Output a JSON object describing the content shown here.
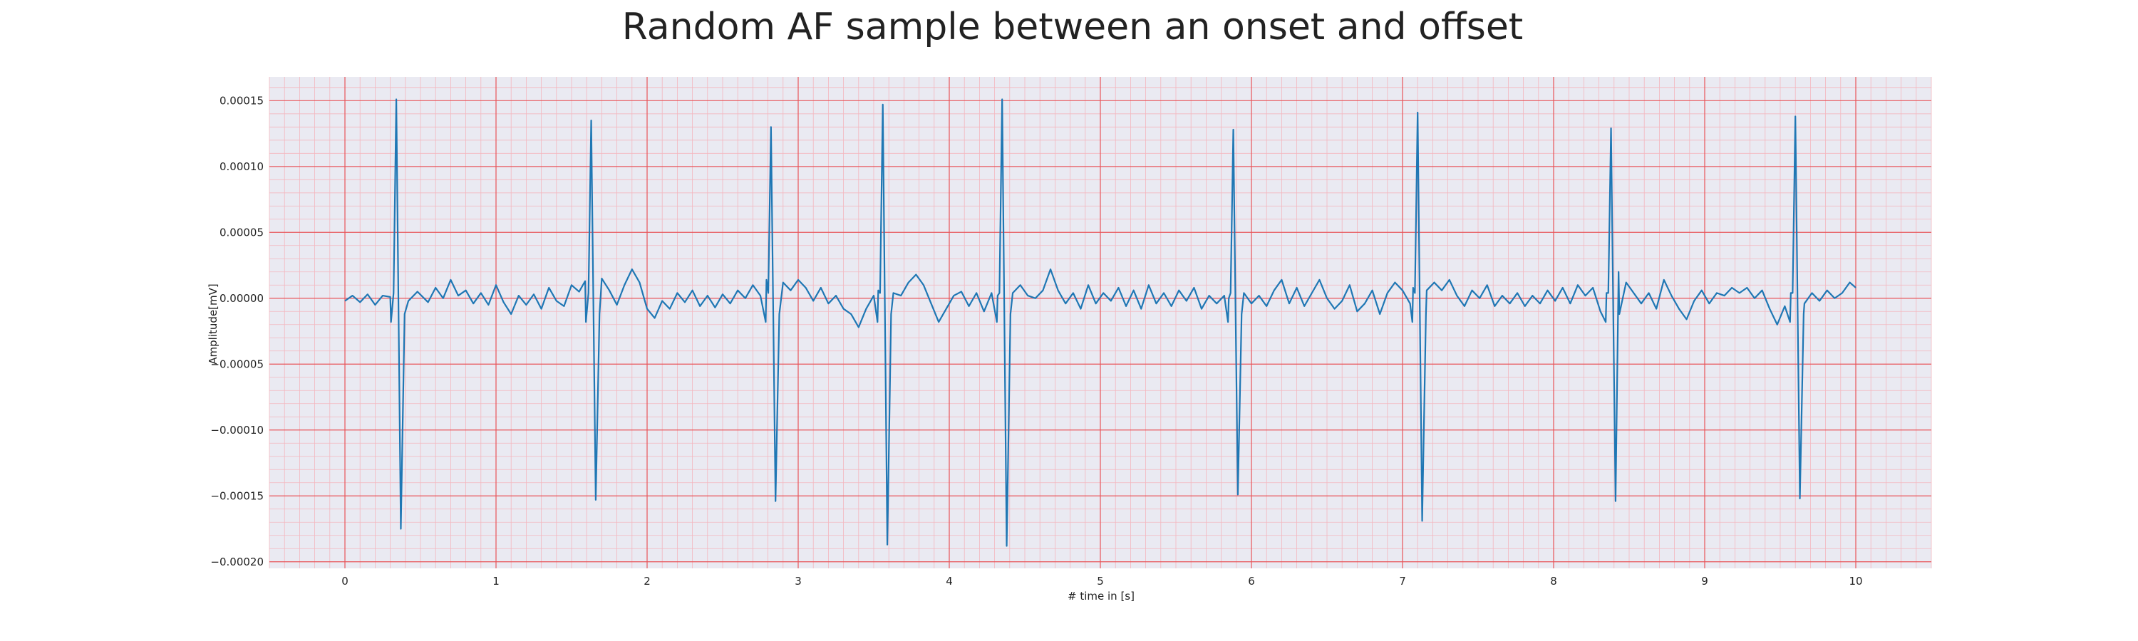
{
  "chart_data": {
    "type": "line",
    "title": "Random AF sample between an onset and offset",
    "xlabel": "# time in [s]",
    "ylabel": "Amplitude[mV]",
    "xlim": [
      -0.5,
      10.5
    ],
    "ylim": [
      -0.000205,
      0.000168
    ],
    "x_ticks": [
      0,
      1,
      2,
      3,
      4,
      5,
      6,
      7,
      8,
      9,
      10
    ],
    "x_tick_labels": [
      "0",
      "1",
      "2",
      "3",
      "4",
      "5",
      "6",
      "7",
      "8",
      "9",
      "10"
    ],
    "y_ticks": [
      -0.0002,
      -0.00015,
      -0.0001,
      -5e-05,
      0,
      5e-05,
      0.0001,
      0.00015
    ],
    "y_tick_labels": [
      "−0.00020",
      "−0.00015",
      "−0.00010",
      "−0.00005",
      "0.00000",
      "0.00005",
      "0.00010",
      "0.00015"
    ],
    "grid": true,
    "minor_grid": true,
    "legend": "none",
    "colors": {
      "background": "#eaeaf2",
      "major_grid": "#e8555a",
      "minor_grid": "#f4b6be",
      "line": "#1f77b4"
    },
    "series": [
      {
        "beats": [
          {
            "t": 0.34,
            "peak": 0.000151,
            "trough": -0.000175
          },
          {
            "t": 1.63,
            "peak": 0.000135,
            "trough": -0.000153
          },
          {
            "t": 2.82,
            "peak": 0.00013,
            "trough": -0.000154
          },
          {
            "t": 3.56,
            "peak": 0.000147,
            "trough": -0.000187
          },
          {
            "t": 4.35,
            "peak": 0.000151,
            "trough": -0.000188
          },
          {
            "t": 5.88,
            "peak": 0.000128,
            "trough": -0.000149
          },
          {
            "t": 7.1,
            "peak": 0.000141,
            "trough": -0.000169
          },
          {
            "t": 8.38,
            "peak": 0.000129,
            "trough": -0.000154
          },
          {
            "t": 9.6,
            "peak": 0.000138,
            "trough": -0.000152
          }
        ],
        "baseline": [
          [
            0.0,
            -2e-06
          ],
          [
            0.05,
            2e-06
          ],
          [
            0.1,
            -3e-06
          ],
          [
            0.15,
            3e-06
          ],
          [
            0.2,
            -5e-06
          ],
          [
            0.25,
            2e-06
          ],
          [
            0.3,
            1e-06
          ],
          [
            0.42,
            -2e-06
          ],
          [
            0.48,
            5e-06
          ],
          [
            0.55,
            -3e-06
          ],
          [
            0.6,
            8e-06
          ],
          [
            0.65,
            0
          ],
          [
            0.7,
            1.4e-05
          ],
          [
            0.75,
            2e-06
          ],
          [
            0.8,
            6e-06
          ],
          [
            0.85,
            -4e-06
          ],
          [
            0.9,
            4e-06
          ],
          [
            0.95,
            -5e-06
          ],
          [
            1.0,
            1e-05
          ],
          [
            1.05,
            -3e-06
          ],
          [
            1.1,
            -1.2e-05
          ],
          [
            1.15,
            2e-06
          ],
          [
            1.2,
            -5e-06
          ],
          [
            1.25,
            3e-06
          ],
          [
            1.3,
            -8e-06
          ],
          [
            1.35,
            8e-06
          ],
          [
            1.4,
            -2e-06
          ],
          [
            1.45,
            -6e-06
          ],
          [
            1.5,
            1e-05
          ],
          [
            1.55,
            5e-06
          ],
          [
            1.59,
            1.3e-05
          ],
          [
            1.7,
            1.5e-05
          ],
          [
            1.75,
            6e-06
          ],
          [
            1.8,
            -5e-06
          ],
          [
            1.85,
            1e-05
          ],
          [
            1.9,
            2.2e-05
          ],
          [
            1.95,
            1.2e-05
          ],
          [
            2.0,
            -8e-06
          ],
          [
            2.05,
            -1.5e-05
          ],
          [
            2.1,
            -2e-06
          ],
          [
            2.15,
            -8e-06
          ],
          [
            2.2,
            4e-06
          ],
          [
            2.25,
            -3e-06
          ],
          [
            2.3,
            6e-06
          ],
          [
            2.35,
            -6e-06
          ],
          [
            2.4,
            2e-06
          ],
          [
            2.45,
            -7e-06
          ],
          [
            2.5,
            3e-06
          ],
          [
            2.55,
            -4e-06
          ],
          [
            2.6,
            6e-06
          ],
          [
            2.65,
            0
          ],
          [
            2.7,
            1e-05
          ],
          [
            2.75,
            2e-06
          ],
          [
            2.79,
            1.4e-05
          ],
          [
            2.9,
            1.2e-05
          ],
          [
            2.95,
            6e-06
          ],
          [
            3.0,
            1.4e-05
          ],
          [
            3.05,
            8e-06
          ],
          [
            3.1,
            -2e-06
          ],
          [
            3.15,
            8e-06
          ],
          [
            3.2,
            -4e-06
          ],
          [
            3.25,
            2e-06
          ],
          [
            3.3,
            -8e-06
          ],
          [
            3.35,
            -1.2e-05
          ],
          [
            3.4,
            -2.2e-05
          ],
          [
            3.45,
            -8e-06
          ],
          [
            3.5,
            2e-06
          ],
          [
            3.53,
            6e-06
          ],
          [
            3.63,
            4e-06
          ],
          [
            3.68,
            2e-06
          ],
          [
            3.73,
            1.2e-05
          ],
          [
            3.78,
            1.8e-05
          ],
          [
            3.83,
            1e-05
          ],
          [
            3.88,
            -4e-06
          ],
          [
            3.93,
            -1.8e-05
          ],
          [
            3.98,
            -8e-06
          ],
          [
            4.03,
            2e-06
          ],
          [
            4.08,
            5e-06
          ],
          [
            4.13,
            -6e-06
          ],
          [
            4.18,
            4e-06
          ],
          [
            4.23,
            -1e-05
          ],
          [
            4.28,
            4e-06
          ],
          [
            4.32,
            2e-06
          ],
          [
            4.42,
            4e-06
          ],
          [
            4.47,
            1e-05
          ],
          [
            4.52,
            2e-06
          ],
          [
            4.57,
            0
          ],
          [
            4.62,
            6e-06
          ],
          [
            4.67,
            2.2e-05
          ],
          [
            4.72,
            6e-06
          ],
          [
            4.77,
            -4e-06
          ],
          [
            4.82,
            4e-06
          ],
          [
            4.87,
            -8e-06
          ],
          [
            4.92,
            1e-05
          ],
          [
            4.97,
            -4e-06
          ],
          [
            5.02,
            4e-06
          ],
          [
            5.07,
            -2e-06
          ],
          [
            5.12,
            8e-06
          ],
          [
            5.17,
            -6e-06
          ],
          [
            5.22,
            6e-06
          ],
          [
            5.27,
            -8e-06
          ],
          [
            5.32,
            1e-05
          ],
          [
            5.37,
            -4e-06
          ],
          [
            5.42,
            4e-06
          ],
          [
            5.47,
            -6e-06
          ],
          [
            5.52,
            6e-06
          ],
          [
            5.57,
            -2e-06
          ],
          [
            5.62,
            8e-06
          ],
          [
            5.67,
            -8e-06
          ],
          [
            5.72,
            2e-06
          ],
          [
            5.77,
            -4e-06
          ],
          [
            5.82,
            2e-06
          ],
          [
            5.85,
            0
          ],
          [
            5.95,
            4e-06
          ],
          [
            6.0,
            -4e-06
          ],
          [
            6.05,
            2e-06
          ],
          [
            6.1,
            -6e-06
          ],
          [
            6.15,
            6e-06
          ],
          [
            6.2,
            1.4e-05
          ],
          [
            6.25,
            -4e-06
          ],
          [
            6.3,
            8e-06
          ],
          [
            6.35,
            -6e-06
          ],
          [
            6.4,
            4e-06
          ],
          [
            6.45,
            1.4e-05
          ],
          [
            6.5,
            0
          ],
          [
            6.55,
            -8e-06
          ],
          [
            6.6,
            -2e-06
          ],
          [
            6.65,
            1e-05
          ],
          [
            6.7,
            -1e-05
          ],
          [
            6.75,
            -4e-06
          ],
          [
            6.8,
            6e-06
          ],
          [
            6.85,
            -1.2e-05
          ],
          [
            6.9,
            4e-06
          ],
          [
            6.95,
            1.2e-05
          ],
          [
            7.0,
            6e-06
          ],
          [
            7.05,
            -4e-06
          ],
          [
            7.07,
            8e-06
          ],
          [
            7.16,
            6e-06
          ],
          [
            7.21,
            1.2e-05
          ],
          [
            7.26,
            6e-06
          ],
          [
            7.31,
            1.4e-05
          ],
          [
            7.36,
            2e-06
          ],
          [
            7.41,
            -6e-06
          ],
          [
            7.46,
            6e-06
          ],
          [
            7.51,
            0
          ],
          [
            7.56,
            1e-05
          ],
          [
            7.61,
            -6e-06
          ],
          [
            7.66,
            2e-06
          ],
          [
            7.71,
            -4e-06
          ],
          [
            7.76,
            4e-06
          ],
          [
            7.81,
            -6e-06
          ],
          [
            7.86,
            2e-06
          ],
          [
            7.91,
            -4e-06
          ],
          [
            7.96,
            6e-06
          ],
          [
            8.01,
            -2e-06
          ],
          [
            8.06,
            8e-06
          ],
          [
            8.11,
            -4e-06
          ],
          [
            8.16,
            1e-05
          ],
          [
            8.21,
            2e-06
          ],
          [
            8.26,
            8e-06
          ],
          [
            8.31,
            -1e-05
          ],
          [
            8.35,
            4e-06
          ],
          [
            8.43,
            2e-05
          ],
          [
            8.48,
            1.2e-05
          ],
          [
            8.53,
            4e-06
          ],
          [
            8.58,
            -4e-06
          ],
          [
            8.63,
            4e-06
          ],
          [
            8.68,
            -8e-06
          ],
          [
            8.73,
            1.4e-05
          ],
          [
            8.78,
            2e-06
          ],
          [
            8.83,
            -8e-06
          ],
          [
            8.88,
            -1.6e-05
          ],
          [
            8.93,
            -2e-06
          ],
          [
            8.98,
            6e-06
          ],
          [
            9.03,
            -4e-06
          ],
          [
            9.08,
            4e-06
          ],
          [
            9.13,
            2e-06
          ],
          [
            9.18,
            8e-06
          ],
          [
            9.23,
            4e-06
          ],
          [
            9.28,
            8e-06
          ],
          [
            9.33,
            0
          ],
          [
            9.38,
            6e-06
          ],
          [
            9.43,
            -8e-06
          ],
          [
            9.48,
            -2e-05
          ],
          [
            9.53,
            -6e-06
          ],
          [
            9.57,
            4e-06
          ],
          [
            9.66,
            -4e-06
          ],
          [
            9.71,
            4e-06
          ],
          [
            9.76,
            -2e-06
          ],
          [
            9.81,
            6e-06
          ],
          [
            9.86,
            0
          ],
          [
            9.91,
            4e-06
          ],
          [
            9.96,
            1.2e-05
          ],
          [
            10.0,
            8e-06
          ]
        ]
      }
    ]
  }
}
